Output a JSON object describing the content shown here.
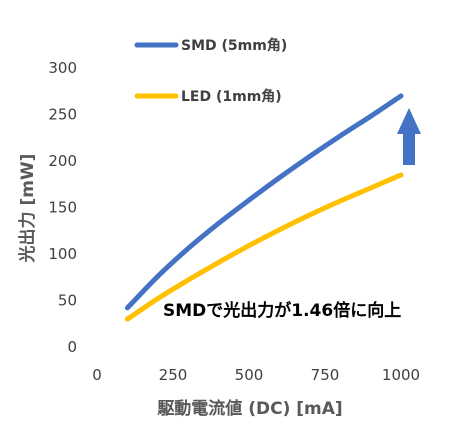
{
  "chart_data": {
    "type": "line",
    "xlabel": "駆動電流値 (DC) [mA]",
    "ylabel": "光出力 [mW]",
    "xlim": [
      0,
      1000
    ],
    "ylim": [
      0,
      300
    ],
    "xticks": [
      0,
      250,
      500,
      750,
      1000
    ],
    "yticks": [
      0,
      50,
      100,
      150,
      200,
      250,
      300
    ],
    "grid": false,
    "legend_position": "top-left",
    "series": [
      {
        "name": "SMD (5mm角)",
        "color": "#4472C4",
        "x": [
          100,
          200,
          300,
          400,
          500,
          600,
          700,
          800,
          900,
          1000
        ],
        "y": [
          42,
          76,
          106,
          133,
          158,
          182,
          205,
          227,
          248,
          270
        ]
      },
      {
        "name": "LED (1mm角)",
        "color": "#FFC000",
        "x": [
          100,
          200,
          300,
          400,
          500,
          600,
          700,
          800,
          900,
          1000
        ],
        "y": [
          30,
          52,
          72,
          91,
          109,
          126,
          142,
          157,
          171,
          185
        ]
      }
    ],
    "annotation": {
      "text": "SMDで光出力が1.46倍に向上",
      "arrow_color": "#4472C4",
      "arrow_direction": "up"
    }
  }
}
